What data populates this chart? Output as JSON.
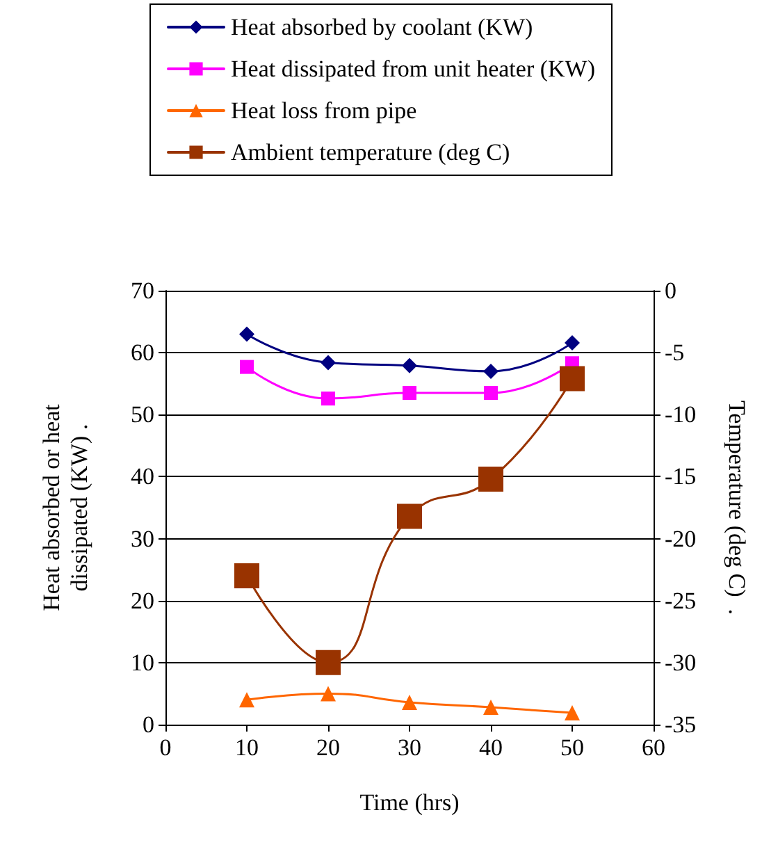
{
  "chart_data": {
    "type": "line",
    "xlabel": "Time (hrs)",
    "ylabel": "Heat absorbed or heat dissipated (KW)  .",
    "y2label": "Temperature (deg C)  .",
    "x": [
      10,
      20,
      30,
      40,
      50
    ],
    "series": [
      {
        "name": "Heat absorbed by coolant (KW)",
        "color": "#000080",
        "marker": "diamond",
        "values": [
          63,
          58.4,
          57.9,
          57,
          61.6
        ]
      },
      {
        "name": "Heat dissipated from unit heater (KW)",
        "color": "#ff00ff",
        "marker": "square",
        "values": [
          57.7,
          52.6,
          53.5,
          53.5,
          58.3
        ]
      },
      {
        "name": "Heat loss from pipe",
        "color": "#ff6600",
        "marker": "triangle",
        "values": [
          4,
          5,
          3.6,
          2.8,
          1.9
        ]
      },
      {
        "name": "Ambient temperature (deg C)",
        "color": "#993300",
        "marker": "square",
        "axis": "y2",
        "values": [
          -23,
          -30,
          -18.2,
          -15.2,
          -7.1
        ]
      }
    ],
    "xlim": [
      0,
      60
    ],
    "xticks": [
      0,
      10,
      20,
      30,
      40,
      50,
      60
    ],
    "ylim": [
      0,
      70
    ],
    "yticks": [
      0,
      10,
      20,
      30,
      40,
      50,
      60,
      70
    ],
    "y2lim": [
      -35,
      0
    ],
    "y2ticks": [
      -35,
      -30,
      -25,
      -20,
      -15,
      -10,
      -5,
      0
    ],
    "grid": "y",
    "legend": "top"
  }
}
